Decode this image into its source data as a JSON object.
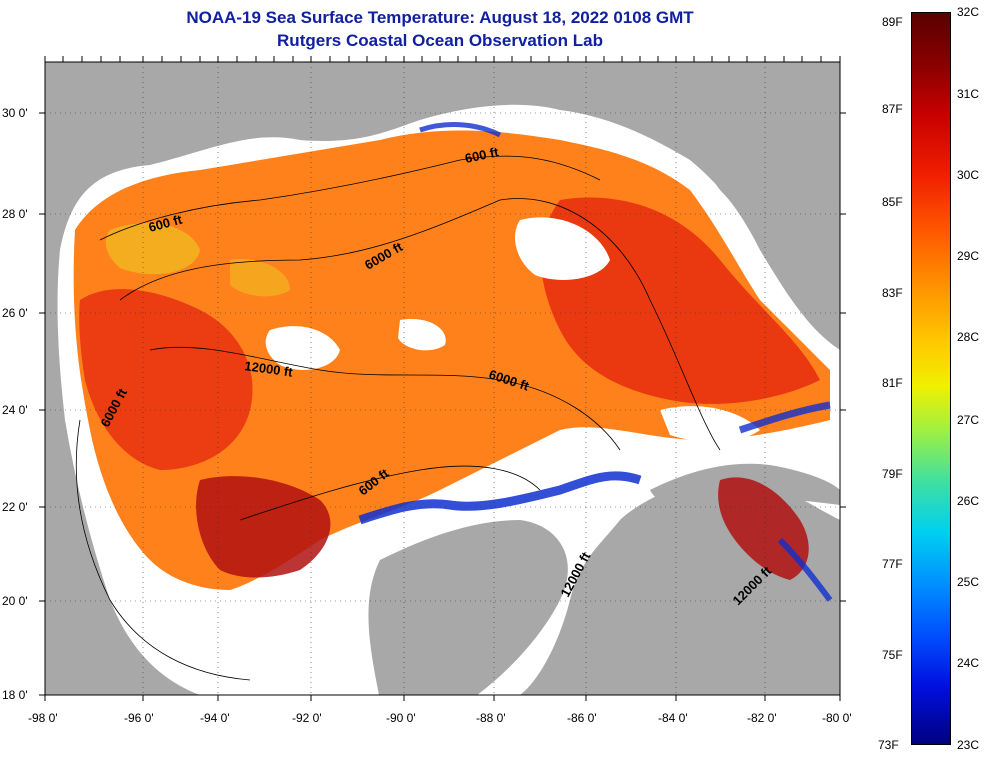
{
  "title": {
    "line1": "NOAA-19 Sea Surface Temperature:  August 18, 2022 0108 GMT",
    "line2": "Rutgers Coastal Ocean Observation Lab"
  },
  "map": {
    "lat_labels": [
      "30 0'",
      "28 0'",
      "26 0'",
      "24 0'",
      "22 0'",
      "20 0'",
      "18 0'"
    ],
    "lon_labels": [
      "-98 0'",
      "-96 0'",
      "-94 0'",
      "-92 0'",
      "-90 0'",
      "-88 0'",
      "-86 0'",
      "-84 0'",
      "-82 0'",
      "-80 0'"
    ],
    "contour_labels": [
      {
        "text": "600 ft"
      },
      {
        "text": "600 ft"
      },
      {
        "text": "6000 ft"
      },
      {
        "text": "12000 ft"
      },
      {
        "text": "6000 ft"
      },
      {
        "text": "6000 ft"
      },
      {
        "text": "600 ft"
      },
      {
        "text": "12000 ft"
      },
      {
        "text": "12000 ft"
      }
    ],
    "colors": {
      "land": "#a8a8a8",
      "cloud": "#ffffff",
      "warm": "#e83010",
      "hot": "#b01010",
      "mild": "#ff7a10",
      "cool": "#1030d0"
    }
  },
  "colorbar": {
    "fahrenheit_labels": [
      "89F",
      "87F",
      "85F",
      "83F",
      "81F",
      "79F",
      "77F",
      "75F",
      "73F"
    ],
    "celsius_labels": [
      "32C",
      "31C",
      "30C",
      "29C",
      "28C",
      "27C",
      "26C",
      "25C",
      "24C",
      "23C"
    ],
    "min_c": 23,
    "max_c": 32
  }
}
